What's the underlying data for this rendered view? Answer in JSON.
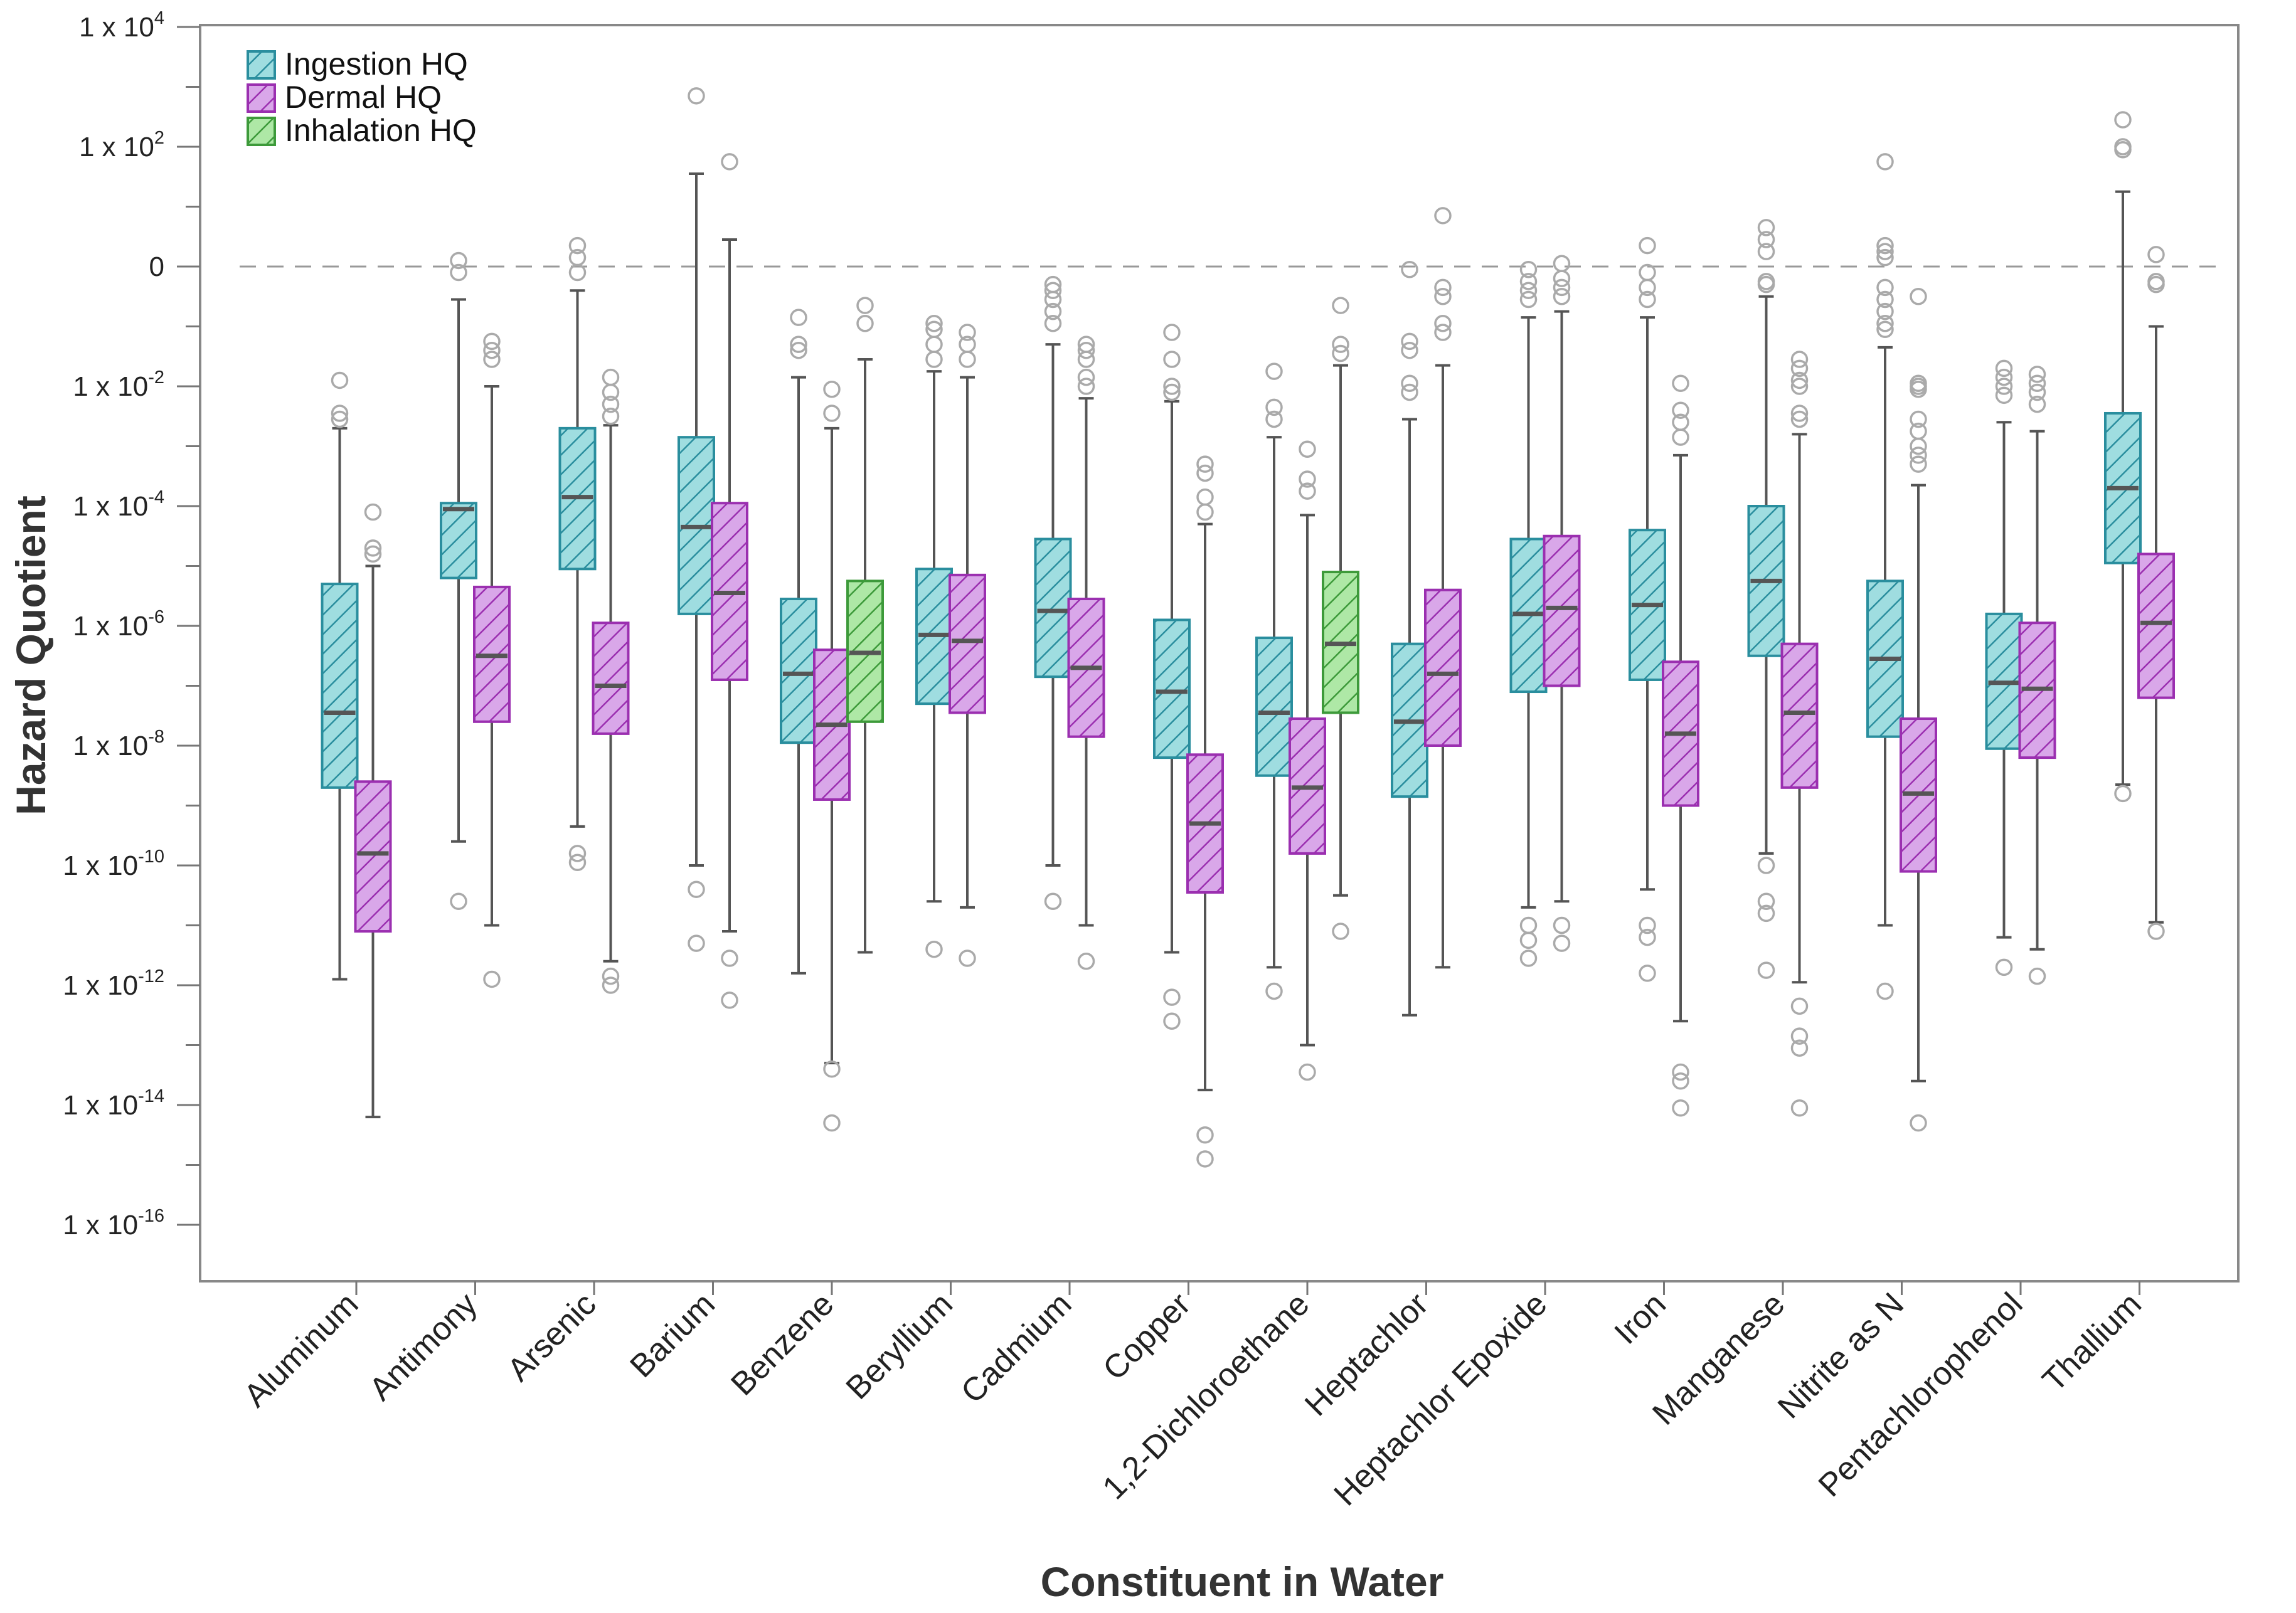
{
  "chart_data": {
    "type": "boxplot",
    "title": "",
    "xlabel": "Constituent in Water",
    "ylabel": "Hazard Quotient",
    "y_scale": "log10",
    "ylim_log10": [
      -17,
      4
    ],
    "reference_line": {
      "log10_value": 0,
      "style": "dashed"
    },
    "y_ticks": [
      {
        "exp": 4,
        "base": "1 x 10",
        "sup": "4"
      },
      {
        "exp": 2,
        "base": "1 x 10",
        "sup": "2"
      },
      {
        "exp": 0,
        "base": "0",
        "sup": ""
      },
      {
        "exp": -2,
        "base": "1 x 10",
        "sup": "-2"
      },
      {
        "exp": -4,
        "base": "1 x 10",
        "sup": "-4"
      },
      {
        "exp": -6,
        "base": "1 x 10",
        "sup": "-6"
      },
      {
        "exp": -8,
        "base": "1 x 10",
        "sup": "-8"
      },
      {
        "exp": -10,
        "base": "1 x 10",
        "sup": "-10"
      },
      {
        "exp": -12,
        "base": "1 x 10",
        "sup": "-12"
      },
      {
        "exp": -14,
        "base": "1 x 10",
        "sup": "-14"
      },
      {
        "exp": -16,
        "base": "1 x 10",
        "sup": "-16"
      }
    ],
    "categories": [
      "Aluminum",
      "Antimony",
      "Arsenic",
      "Barium",
      "Benzene",
      "Beryllium",
      "Cadmium",
      "Copper",
      "1,2-Dichloroethane",
      "Heptachlor",
      "Heptachlor Epoxide",
      "Iron",
      "Manganese",
      "Nitrite as N",
      "Pentachlorophenol",
      "Thallium"
    ],
    "legend": [
      {
        "name": "Ingestion HQ",
        "color": "#9fdde0",
        "stroke": "#2a8e9e"
      },
      {
        "name": "Dermal HQ",
        "color": "#d9a7e9",
        "stroke": "#9b2fb0"
      },
      {
        "name": "Inhalation HQ",
        "color": "#aee8a6",
        "stroke": "#3d9a3a"
      }
    ],
    "value_units": "log10(HQ)",
    "groups": [
      {
        "category": "Aluminum",
        "boxes": [
          {
            "series": "Ingestion HQ",
            "lw": -11.9,
            "q1": -8.7,
            "med": -7.45,
            "q3": -5.3,
            "uw": -2.7,
            "outliers": [
              -1.9,
              -2.45,
              -2.55
            ]
          },
          {
            "series": "Dermal HQ",
            "lw": -14.2,
            "q1": -11.1,
            "med": -9.8,
            "q3": -8.6,
            "uw": -5.0,
            "outliers": [
              -4.1,
              -4.7,
              -4.8
            ]
          }
        ]
      },
      {
        "category": "Antimony",
        "boxes": [
          {
            "series": "Ingestion HQ",
            "lw": -9.6,
            "q1": -5.2,
            "med": -4.05,
            "q3": -3.95,
            "uw": -0.55,
            "outliers": [
              0.1,
              -0.1,
              -10.6
            ]
          },
          {
            "series": "Dermal HQ",
            "lw": -11.0,
            "q1": -7.6,
            "med": -6.5,
            "q3": -5.35,
            "uw": -2.0,
            "outliers": [
              -1.25,
              -1.4,
              -1.55,
              -11.9
            ]
          }
        ]
      },
      {
        "category": "Arsenic",
        "boxes": [
          {
            "series": "Ingestion HQ",
            "lw": -9.35,
            "q1": -5.05,
            "med": -3.85,
            "q3": -2.7,
            "uw": -0.4,
            "outliers": [
              0.35,
              0.15,
              -0.1,
              -9.8,
              -9.95
            ]
          },
          {
            "series": "Dermal HQ",
            "lw": -11.6,
            "q1": -7.8,
            "med": -7.0,
            "q3": -5.95,
            "uw": -2.65,
            "outliers": [
              -1.85,
              -2.1,
              -2.3,
              -2.5,
              -11.85,
              -12.0
            ]
          }
        ]
      },
      {
        "category": "Barium",
        "boxes": [
          {
            "series": "Ingestion HQ",
            "lw": -10.0,
            "q1": -5.8,
            "med": -4.35,
            "q3": -2.85,
            "uw": 1.55,
            "outliers": [
              2.85,
              -10.4,
              -11.3
            ]
          },
          {
            "series": "Dermal HQ",
            "lw": -11.1,
            "q1": -6.9,
            "med": -5.45,
            "q3": -3.95,
            "uw": 0.45,
            "outliers": [
              1.75,
              -11.55,
              -12.25
            ]
          }
        ]
      },
      {
        "category": "Benzene",
        "boxes": [
          {
            "series": "Ingestion HQ",
            "lw": -11.8,
            "q1": -7.95,
            "med": -6.8,
            "q3": -5.55,
            "uw": -1.85,
            "outliers": [
              -0.85,
              -1.3,
              -1.4
            ]
          },
          {
            "series": "Dermal HQ",
            "lw": -13.3,
            "q1": -8.9,
            "med": -7.65,
            "q3": -6.4,
            "uw": -2.7,
            "outliers": [
              -2.05,
              -2.45,
              -13.4,
              -14.3
            ]
          },
          {
            "series": "Inhalation HQ",
            "lw": -11.45,
            "q1": -7.6,
            "med": -6.45,
            "q3": -5.25,
            "uw": -1.55,
            "outliers": [
              -0.65,
              -0.95
            ]
          }
        ]
      },
      {
        "category": "Beryllium",
        "boxes": [
          {
            "series": "Ingestion HQ",
            "lw": -10.6,
            "q1": -7.3,
            "med": -6.15,
            "q3": -5.05,
            "uw": -1.75,
            "outliers": [
              -0.95,
              -1.05,
              -1.3,
              -1.55,
              -11.4
            ]
          },
          {
            "series": "Dermal HQ",
            "lw": -10.7,
            "q1": -7.45,
            "med": -6.25,
            "q3": -5.15,
            "uw": -1.85,
            "outliers": [
              -1.1,
              -1.3,
              -1.55,
              -11.55
            ]
          }
        ]
      },
      {
        "category": "Cadmium",
        "boxes": [
          {
            "series": "Ingestion HQ",
            "lw": -10.0,
            "q1": -6.85,
            "med": -5.75,
            "q3": -4.55,
            "uw": -1.3,
            "outliers": [
              -0.3,
              -0.4,
              -0.55,
              -0.75,
              -0.95,
              -10.6
            ]
          },
          {
            "series": "Dermal HQ",
            "lw": -11.0,
            "q1": -7.85,
            "med": -6.7,
            "q3": -5.55,
            "uw": -2.2,
            "outliers": [
              -1.3,
              -1.4,
              -1.55,
              -1.85,
              -2.0,
              -11.6
            ]
          }
        ]
      },
      {
        "category": "Copper",
        "boxes": [
          {
            "series": "Ingestion HQ",
            "lw": -11.45,
            "q1": -8.2,
            "med": -7.1,
            "q3": -5.9,
            "uw": -2.25,
            "outliers": [
              -1.1,
              -1.55,
              -2.0,
              -2.1,
              -12.2,
              -12.6
            ]
          },
          {
            "series": "Dermal HQ",
            "lw": -13.75,
            "q1": -10.45,
            "med": -9.3,
            "q3": -8.15,
            "uw": -4.3,
            "outliers": [
              -3.3,
              -3.45,
              -3.85,
              -4.1,
              -14.5,
              -14.9
            ]
          }
        ]
      },
      {
        "category": "1,2-Dichloroethane",
        "boxes": [
          {
            "series": "Ingestion HQ",
            "lw": -11.7,
            "q1": -8.5,
            "med": -7.45,
            "q3": -6.2,
            "uw": -2.85,
            "outliers": [
              -1.75,
              -2.35,
              -2.55,
              -12.1
            ]
          },
          {
            "series": "Dermal HQ",
            "lw": -13.0,
            "q1": -9.8,
            "med": -8.7,
            "q3": -7.55,
            "uw": -4.15,
            "outliers": [
              -3.05,
              -3.55,
              -3.75,
              -13.45
            ]
          },
          {
            "series": "Inhalation HQ",
            "lw": -10.5,
            "q1": -7.45,
            "med": -6.3,
            "q3": -5.1,
            "uw": -1.65,
            "outliers": [
              -0.65,
              -1.3,
              -1.45,
              -11.1
            ]
          }
        ]
      },
      {
        "category": "Heptachlor",
        "boxes": [
          {
            "series": "Ingestion HQ",
            "lw": -12.5,
            "q1": -8.85,
            "med": -7.6,
            "q3": -6.3,
            "uw": -2.55,
            "outliers": [
              -0.05,
              -1.25,
              -1.4,
              -1.95,
              -2.1
            ]
          },
          {
            "series": "Dermal HQ",
            "lw": -11.7,
            "q1": -8.0,
            "med": -6.8,
            "q3": -5.4,
            "uw": -1.65,
            "outliers": [
              0.85,
              -0.35,
              -0.5,
              -0.95,
              -1.1
            ]
          }
        ]
      },
      {
        "category": "Heptachlor Epoxide",
        "boxes": [
          {
            "series": "Ingestion HQ",
            "lw": -10.7,
            "q1": -7.1,
            "med": -5.8,
            "q3": -4.55,
            "uw": -0.85,
            "outliers": [
              -0.05,
              -0.25,
              -0.4,
              -0.55,
              -11.0,
              -11.25,
              -11.55
            ]
          },
          {
            "series": "Dermal HQ",
            "lw": -10.6,
            "q1": -7.0,
            "med": -5.7,
            "q3": -4.5,
            "uw": -0.75,
            "outliers": [
              0.05,
              -0.2,
              -0.35,
              -0.5,
              -11.0,
              -11.3
            ]
          }
        ]
      },
      {
        "category": "Iron",
        "boxes": [
          {
            "series": "Ingestion HQ",
            "lw": -10.4,
            "q1": -6.9,
            "med": -5.65,
            "q3": -4.4,
            "uw": -0.85,
            "outliers": [
              0.35,
              -0.1,
              -0.35,
              -0.55,
              -11.0,
              -11.2,
              -11.8
            ]
          },
          {
            "series": "Dermal HQ",
            "lw": -12.6,
            "q1": -9.0,
            "med": -7.8,
            "q3": -6.6,
            "uw": -3.15,
            "outliers": [
              -1.95,
              -2.4,
              -2.6,
              -2.85,
              -13.45,
              -13.6,
              -14.05
            ]
          }
        ]
      },
      {
        "category": "Manganese",
        "boxes": [
          {
            "series": "Ingestion HQ",
            "lw": -9.8,
            "q1": -6.5,
            "med": -5.25,
            "q3": -4.0,
            "uw": -0.5,
            "outliers": [
              0.65,
              0.45,
              0.25,
              -0.25,
              -0.3,
              -10.0,
              -10.6,
              -10.8,
              -11.75
            ]
          },
          {
            "series": "Dermal HQ",
            "lw": -11.95,
            "q1": -8.7,
            "med": -7.45,
            "q3": -6.3,
            "uw": -2.8,
            "outliers": [
              -1.55,
              -1.7,
              -1.9,
              -2.0,
              -2.45,
              -2.55,
              -12.35,
              -12.85,
              -13.05,
              -14.05
            ]
          }
        ]
      },
      {
        "category": "Nitrite as N",
        "boxes": [
          {
            "series": "Ingestion HQ",
            "lw": -11.0,
            "q1": -7.85,
            "med": -6.55,
            "q3": -5.25,
            "uw": -1.35,
            "outliers": [
              1.75,
              0.35,
              0.25,
              0.15,
              -0.35,
              -0.55,
              -0.75,
              -0.95,
              -1.05,
              -12.1
            ]
          },
          {
            "series": "Dermal HQ",
            "lw": -13.6,
            "q1": -10.1,
            "med": -8.8,
            "q3": -7.55,
            "uw": -3.65,
            "outliers": [
              -0.5,
              -1.95,
              -2.0,
              -2.05,
              -2.55,
              -2.75,
              -3.0,
              -3.15,
              -3.3,
              -14.3
            ]
          }
        ]
      },
      {
        "category": "Pentachlorophenol",
        "boxes": [
          {
            "series": "Ingestion HQ",
            "lw": -11.2,
            "q1": -8.05,
            "med": -6.95,
            "q3": -5.8,
            "uw": -2.6,
            "outliers": [
              -1.7,
              -1.85,
              -2.0,
              -2.15,
              -11.7
            ]
          },
          {
            "series": "Dermal HQ",
            "lw": -11.4,
            "q1": -8.2,
            "med": -7.05,
            "q3": -5.95,
            "uw": -2.75,
            "outliers": [
              -1.8,
              -1.95,
              -2.1,
              -2.3,
              -11.85
            ]
          }
        ]
      },
      {
        "category": "Thallium",
        "boxes": [
          {
            "series": "Ingestion HQ",
            "lw": -8.65,
            "q1": -4.95,
            "med": -3.7,
            "q3": -2.45,
            "uw": 1.25,
            "outliers": [
              2.45,
              2.0,
              1.95,
              -8.8
            ]
          },
          {
            "series": "Dermal HQ",
            "lw": -10.95,
            "q1": -7.2,
            "med": -5.95,
            "q3": -4.8,
            "uw": -1.0,
            "outliers": [
              0.2,
              -0.25,
              -0.3,
              -11.1
            ]
          }
        ]
      }
    ]
  }
}
